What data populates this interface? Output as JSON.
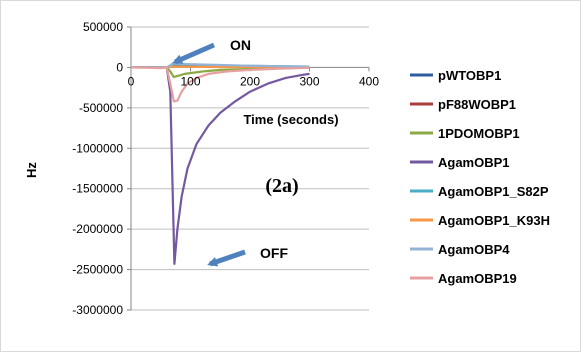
{
  "chart_data": {
    "type": "line",
    "title": "",
    "panel_label": "(2a)",
    "xlabel": "Time (seconds)",
    "ylabel": "Hz",
    "xlim": [
      0,
      400
    ],
    "ylim": [
      -3000000,
      500000
    ],
    "x_ticks": [
      0,
      100,
      200,
      300,
      400
    ],
    "y_ticks": [
      500000,
      0,
      -500000,
      -1000000,
      -1500000,
      -2000000,
      -2500000,
      -3000000
    ],
    "grid": "horizontal",
    "legend_position": "right",
    "annotations": [
      {
        "text": "ON",
        "x": 70,
        "y": 60000
      },
      {
        "text": "OFF",
        "x": 73,
        "y": -2430000
      }
    ],
    "series": [
      {
        "name": "pWTOBP1",
        "color": "#2E5D9F",
        "x": [
          0,
          40,
          60,
          66,
          70,
          100,
          150,
          200,
          250,
          300
        ],
        "y": [
          0,
          0,
          0,
          15000,
          30000,
          25000,
          15000,
          10000,
          5000,
          5000
        ]
      },
      {
        "name": "pF88WOBP1",
        "color": "#A93D3A",
        "x": [
          0,
          40,
          60,
          66,
          70,
          100,
          150,
          200,
          250,
          300
        ],
        "y": [
          0,
          0,
          0,
          10000,
          20000,
          15000,
          10000,
          5000,
          5000,
          5000
        ]
      },
      {
        "name": "1PDOMOBP1",
        "color": "#8BAA45",
        "x": [
          0,
          40,
          60,
          66,
          72,
          90,
          120,
          150,
          200,
          250,
          300
        ],
        "y": [
          0,
          0,
          0,
          -50000,
          -120000,
          -80000,
          -50000,
          -30000,
          -20000,
          -10000,
          -5000
        ]
      },
      {
        "name": "AgamOBP1",
        "color": "#7359A0",
        "x": [
          0,
          40,
          60,
          66,
          73,
          78,
          85,
          95,
          110,
          130,
          150,
          175,
          200,
          230,
          260,
          290,
          300
        ],
        "y": [
          0,
          0,
          0,
          -300000,
          -2430000,
          -2000000,
          -1600000,
          -1250000,
          -950000,
          -720000,
          -560000,
          -420000,
          -300000,
          -200000,
          -130000,
          -90000,
          -80000
        ]
      },
      {
        "name": "AgamOBP1_S82P",
        "color": "#4BACC6",
        "x": [
          0,
          40,
          60,
          66,
          70,
          100,
          150,
          200,
          250,
          300
        ],
        "y": [
          0,
          0,
          0,
          20000,
          40000,
          35000,
          25000,
          20000,
          15000,
          10000
        ]
      },
      {
        "name": "AgamOBP1_K93H",
        "color": "#F79646",
        "x": [
          0,
          40,
          60,
          66,
          70,
          100,
          150,
          200,
          250,
          300
        ],
        "y": [
          0,
          0,
          0,
          5000,
          10000,
          8000,
          5000,
          5000,
          5000,
          5000
        ]
      },
      {
        "name": "AgamOBP4",
        "color": "#95B3D7",
        "x": [
          0,
          40,
          60,
          66,
          70,
          100,
          150,
          200,
          250,
          300
        ],
        "y": [
          0,
          0,
          0,
          25000,
          50000,
          40000,
          30000,
          20000,
          15000,
          10000
        ]
      },
      {
        "name": "AgamOBP19",
        "color": "#E6A0A0",
        "x": [
          0,
          30,
          50,
          60,
          66,
          72,
          78,
          85,
          95,
          110,
          130,
          160,
          200,
          250,
          300
        ],
        "y": [
          0,
          -5000,
          -10000,
          0,
          -200000,
          -420000,
          -410000,
          -300000,
          -200000,
          -130000,
          -80000,
          -50000,
          -30000,
          -15000,
          -5000
        ]
      }
    ]
  },
  "colors": {
    "axis": "#868686",
    "grid": "#BFBFBF",
    "arrow": "#4F81BD",
    "background": "#FFFFFF"
  },
  "panel_label": "(2a)"
}
